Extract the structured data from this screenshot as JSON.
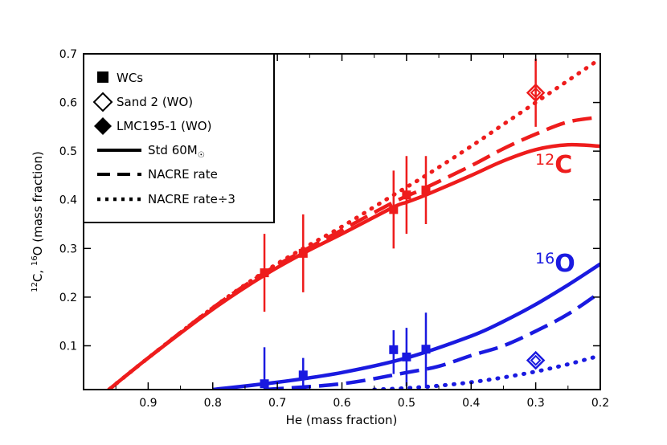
{
  "chart_data": {
    "type": "line",
    "title": "",
    "xlabel": "He (mass fraction)",
    "ylabel_parts": [
      "12",
      "C, ",
      "16",
      "O (mass fraction)"
    ],
    "xlim": [
      1.0,
      0.2
    ],
    "ylim": [
      0.01,
      0.7
    ],
    "x_ticks": [
      0.9,
      0.8,
      0.7,
      0.6,
      0.5,
      0.4,
      0.3,
      0.2
    ],
    "y_ticks": [
      0.1,
      0.2,
      0.3,
      0.4,
      0.5,
      0.6,
      0.7
    ],
    "colors": {
      "carbon": "#ee1c1c",
      "oxygen": "#1a1ae0"
    },
    "carbon_label": {
      "sup": "12",
      "text": "C"
    },
    "oxygen_label": {
      "sup": "16",
      "text": "O"
    },
    "series": [
      {
        "name": "12C Std 60M☉",
        "species": "carbon",
        "style": "solid",
        "x": [
          0.97,
          0.9,
          0.8,
          0.72,
          0.66,
          0.6,
          0.52,
          0.5,
          0.47,
          0.4,
          0.35,
          0.3,
          0.25,
          0.2
        ],
        "y": [
          0.0,
          0.075,
          0.175,
          0.245,
          0.29,
          0.33,
          0.385,
          0.395,
          0.41,
          0.45,
          0.48,
          0.503,
          0.513,
          0.51
        ]
      },
      {
        "name": "12C NACRE rate",
        "species": "carbon",
        "style": "dashed",
        "x": [
          0.97,
          0.9,
          0.8,
          0.72,
          0.66,
          0.6,
          0.52,
          0.47,
          0.4,
          0.35,
          0.3,
          0.25,
          0.2
        ],
        "y": [
          0.0,
          0.075,
          0.178,
          0.25,
          0.295,
          0.338,
          0.395,
          0.425,
          0.47,
          0.505,
          0.535,
          0.56,
          0.57
        ]
      },
      {
        "name": "12C NACRE rate÷3",
        "species": "carbon",
        "style": "dotted",
        "x": [
          0.97,
          0.9,
          0.8,
          0.72,
          0.66,
          0.6,
          0.52,
          0.47,
          0.4,
          0.35,
          0.3,
          0.25,
          0.2
        ],
        "y": [
          0.0,
          0.075,
          0.178,
          0.252,
          0.3,
          0.345,
          0.41,
          0.45,
          0.51,
          0.555,
          0.6,
          0.645,
          0.69
        ]
      },
      {
        "name": "16O Std 60M☉",
        "species": "oxygen",
        "style": "solid",
        "x": [
          0.8,
          0.7,
          0.6,
          0.5,
          0.4,
          0.35,
          0.3,
          0.25,
          0.2
        ],
        "y": [
          0.01,
          0.025,
          0.045,
          0.075,
          0.12,
          0.15,
          0.185,
          0.225,
          0.268
        ]
      },
      {
        "name": "16O NACRE rate",
        "species": "oxygen",
        "style": "dashed",
        "x": [
          0.72,
          0.6,
          0.5,
          0.45,
          0.4,
          0.35,
          0.3,
          0.25,
          0.2
        ],
        "y": [
          0.01,
          0.022,
          0.045,
          0.058,
          0.08,
          0.1,
          0.13,
          0.165,
          0.21
        ]
      },
      {
        "name": "16O NACRE rate÷3",
        "species": "oxygen",
        "style": "dotted",
        "x": [
          0.55,
          0.5,
          0.45,
          0.4,
          0.35,
          0.3,
          0.25,
          0.2
        ],
        "y": [
          0.01,
          0.013,
          0.018,
          0.025,
          0.035,
          0.047,
          0.062,
          0.08
        ]
      }
    ],
    "points": [
      {
        "group": "WCs",
        "species": "carbon",
        "marker": "filled-square",
        "x": 0.72,
        "y": 0.25,
        "err": 0.08
      },
      {
        "group": "WCs",
        "species": "carbon",
        "marker": "filled-square",
        "x": 0.66,
        "y": 0.29,
        "err": 0.08
      },
      {
        "group": "WCs",
        "species": "carbon",
        "marker": "filled-square",
        "x": 0.52,
        "y": 0.38,
        "err": 0.08
      },
      {
        "group": "WCs",
        "species": "carbon",
        "marker": "filled-square",
        "x": 0.5,
        "y": 0.41,
        "err": 0.08
      },
      {
        "group": "WCs",
        "species": "carbon",
        "marker": "filled-square",
        "x": 0.47,
        "y": 0.42,
        "err": 0.07
      },
      {
        "group": "Sand 2 (WO)",
        "species": "carbon",
        "marker": "open-diamond",
        "x": 0.3,
        "y": 0.62,
        "err": 0.07
      },
      {
        "group": "WCs",
        "species": "oxygen",
        "marker": "filled-square",
        "x": 0.72,
        "y": 0.022,
        "err_up": 0.075,
        "err_down": 0.02
      },
      {
        "group": "WCs",
        "species": "oxygen",
        "marker": "filled-square",
        "x": 0.66,
        "y": 0.04,
        "err_up": 0.035,
        "err_down": 0.03
      },
      {
        "group": "WCs",
        "species": "oxygen",
        "marker": "filled-square",
        "x": 0.52,
        "y": 0.092,
        "err_up": 0.04,
        "err_down": 0.05
      },
      {
        "group": "WCs",
        "species": "oxygen",
        "marker": "filled-square",
        "x": 0.5,
        "y": 0.077,
        "err_up": 0.06,
        "err_down": 0.06
      },
      {
        "group": "WCs",
        "species": "oxygen",
        "marker": "filled-square",
        "x": 0.47,
        "y": 0.093,
        "err_up": 0.075,
        "err_down": 0.08
      },
      {
        "group": "Sand 2 (WO)",
        "species": "oxygen",
        "marker": "open-diamond",
        "x": 0.3,
        "y": 0.07
      }
    ],
    "legend": {
      "placement": "top-left",
      "items": [
        {
          "label": "WCs",
          "symbol": "filled-square"
        },
        {
          "label": "Sand 2 (WO)",
          "symbol": "open-diamond"
        },
        {
          "label": "LMC195-1 (WO)",
          "symbol": "filled-diamond"
        },
        {
          "label": "Std 60M",
          "sub": "☉",
          "symbol": "solid-line"
        },
        {
          "label": "NACRE rate",
          "symbol": "dashed-line"
        },
        {
          "label": "NACRE rate÷3",
          "symbol": "dotted-line"
        }
      ]
    }
  }
}
